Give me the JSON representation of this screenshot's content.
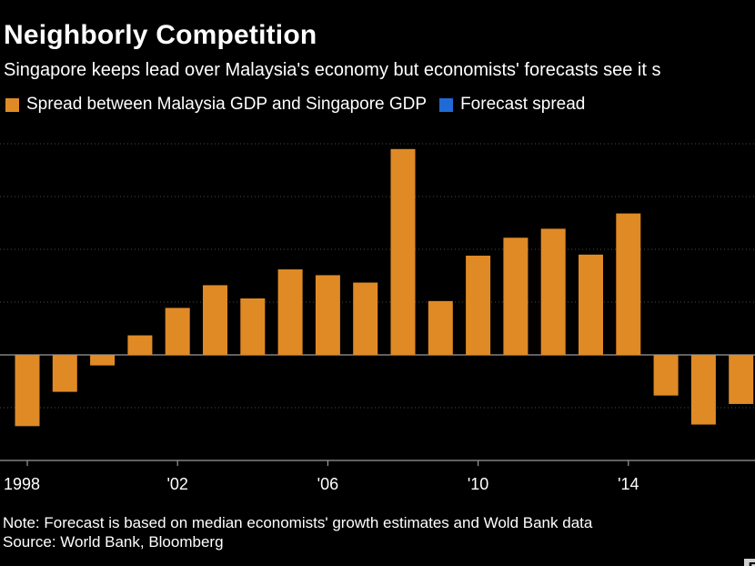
{
  "header": {
    "title": "Neighborly Competition",
    "subtitle": "Singapore keeps lead over Malaysia's economy but economists' forecasts see it s"
  },
  "legend": [
    {
      "label": "Spread between Malaysia GDP and Singapore GDP",
      "color": "#e08a26"
    },
    {
      "label": "Forecast spread",
      "color": "#1f6ad6"
    }
  ],
  "chart_data": {
    "type": "bar",
    "categories": [
      "1998",
      "1999",
      "2000",
      "2001",
      "2002",
      "2003",
      "2004",
      "2005",
      "2006",
      "2007",
      "2008",
      "2009",
      "2010",
      "2011",
      "2012",
      "2013",
      "2014",
      "2015",
      "2016",
      "2017"
    ],
    "tick_labels": [
      {
        "category": "1998",
        "label": "1998"
      },
      {
        "category": "2002",
        "label": "'02"
      },
      {
        "category": "2006",
        "label": "'06"
      },
      {
        "category": "2010",
        "label": "'10"
      },
      {
        "category": "2014",
        "label": "'14"
      }
    ],
    "series": [
      {
        "name": "Spread between Malaysia GDP and Singapore GDP",
        "color": "#e08a26",
        "values": [
          -13.5,
          -7.0,
          -2.0,
          3.7,
          8.9,
          13.2,
          10.7,
          16.2,
          15.1,
          13.7,
          39.0,
          10.2,
          18.8,
          22.2,
          23.9,
          19.0,
          26.8,
          -7.7,
          -13.2,
          -9.3
        ]
      }
    ],
    "ylim": [
      -20,
      40
    ],
    "y_gridlines": [
      -10,
      0,
      10,
      20,
      30,
      40
    ],
    "y_tick_labels_visible": false,
    "grid": true,
    "legend_position": "top-left"
  },
  "footer": {
    "note": "Note: Forecast is based on median economists' growth estimates and Wold Bank data",
    "source": "Source: World Bank, Bloomberg",
    "logo_text": "B"
  }
}
